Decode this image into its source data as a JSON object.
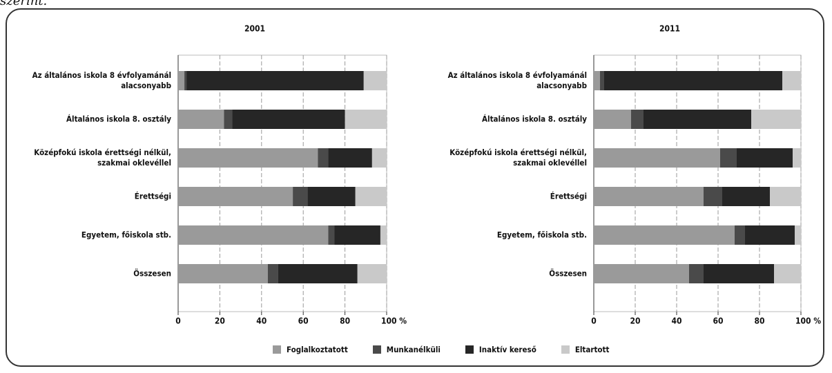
{
  "caption": "szerint.",
  "chart_data": [
    {
      "type": "stacked-barh",
      "title": "2001",
      "categories": [
        "Az általános iskola 8 évfolyamánál alacsonyabb",
        "Általános iskola 8. osztály",
        "Középfokú iskola érettségi nélkül, szakmai oklevéllel",
        "Érettségi",
        "Egyetem, főiskola stb.",
        "Összesen"
      ],
      "series": [
        {
          "name": "Foglalkoztatott",
          "color": "#9a9a9a",
          "values": [
            3,
            22,
            67,
            55,
            72,
            43
          ]
        },
        {
          "name": "Munkanélküli",
          "color": "#4a4a4a",
          "values": [
            1,
            4,
            5,
            7,
            3,
            5
          ]
        },
        {
          "name": "Inaktív kereső",
          "color": "#262626",
          "values": [
            85,
            54,
            21,
            23,
            22,
            38
          ]
        },
        {
          "name": "Eltartott",
          "color": "#c9c9c9",
          "values": [
            11,
            20,
            7,
            15,
            3,
            14
          ]
        }
      ],
      "xlim": [
        0,
        100
      ],
      "xticks": [
        0,
        20,
        40,
        60,
        80,
        {
          "value": 100,
          "label": "100 %"
        }
      ],
      "grid": true
    },
    {
      "type": "stacked-barh",
      "title": "2011",
      "categories": [
        "Az általános iskola 8 évfolyamánál alacsonyabb",
        "Általános iskola 8. osztály",
        "Középfokú iskola érettségi nélkül, szakmai oklevéllel",
        "Érettségi",
        "Egyetem, főiskola stb.",
        "Összesen"
      ],
      "series": [
        {
          "name": "Foglalkoztatott",
          "color": "#9a9a9a",
          "values": [
            3,
            18,
            61,
            53,
            68,
            46
          ]
        },
        {
          "name": "Munkanélküli",
          "color": "#4a4a4a",
          "values": [
            2,
            6,
            8,
            9,
            5,
            7
          ]
        },
        {
          "name": "Inaktív kereső",
          "color": "#262626",
          "values": [
            86,
            52,
            27,
            23,
            24,
            34
          ]
        },
        {
          "name": "Eltartott",
          "color": "#c9c9c9",
          "values": [
            9,
            24,
            4,
            15,
            3,
            13
          ]
        }
      ],
      "xlim": [
        0,
        100
      ],
      "xticks": [
        0,
        20,
        40,
        60,
        80,
        {
          "value": 100,
          "label": "100 %"
        }
      ],
      "grid": true
    }
  ]
}
